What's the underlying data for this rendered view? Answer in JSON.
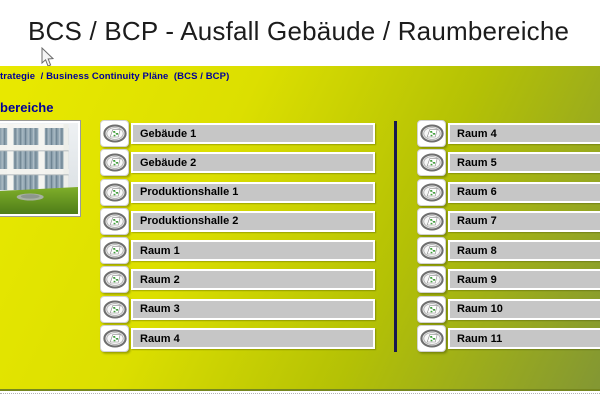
{
  "window": {
    "title": "BCS / BCP - Ausfall Gebäude / Raumbereiche"
  },
  "breadcrumb": {
    "text": "trategie  / Business Continuity Pläne  (BCS / BCP)"
  },
  "section": {
    "label": "bereiche"
  },
  "columns": {
    "left": [
      "Gebäude 1",
      "Gebäude 2",
      "Produktionshalle 1",
      "Produktionshalle 2",
      "Raum 1",
      "Raum 2",
      "Raum 3",
      "Raum 4"
    ],
    "right": [
      "Raum 4",
      "Raum 5",
      "Raum 6",
      "Raum 7",
      "Raum 8",
      "Raum 9",
      "Raum 10",
      "Raum 11"
    ]
  },
  "icons": {
    "row_icon": "process-model-icon",
    "cursor": "mouse-cursor-icon"
  },
  "colors": {
    "panel-top": "#e9e900",
    "panel-bottom": "#839733",
    "breadcrumb-text": "#000099",
    "button-face": "#c6c6c6",
    "separator": "#181850",
    "icon-green": "#3fa03a"
  }
}
